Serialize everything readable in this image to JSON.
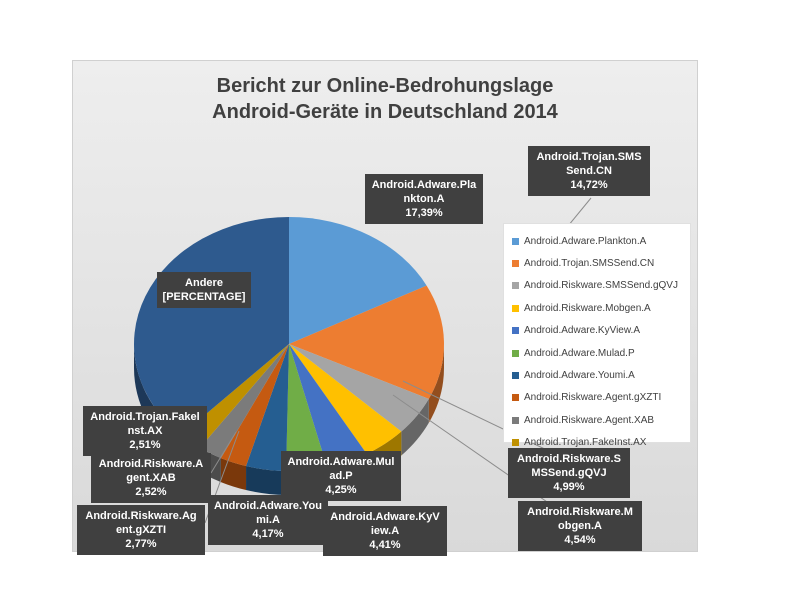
{
  "chart_data": {
    "type": "pie",
    "title_line1": "Bericht zur Online-Bedrohungslage",
    "title_line2": "Android-Geräte in Deutschland 2014",
    "slices": [
      {
        "name": "Android.Adware.Plankton.A",
        "label_lines": [
          "Android.Adware.Pla",
          "nkton.A"
        ],
        "value_label": "17,39%",
        "value": 17.39,
        "color": "#5b9bd5"
      },
      {
        "name": "Android.Trojan.SMSSend.CN",
        "label_lines": [
          "Android.Trojan.SMS",
          "Send.CN"
        ],
        "value_label": "14,72%",
        "value": 14.72,
        "color": "#ed7d31"
      },
      {
        "name": "Android.Riskware.SMSSend.gQVJ",
        "label_lines": [
          "Android.Riskware.S",
          "MSSend.gQVJ"
        ],
        "value_label": "4,99%",
        "value": 4.99,
        "color": "#a5a5a5"
      },
      {
        "name": "Android.Riskware.Mobgen.A",
        "label_lines": [
          "Android.Riskware.M",
          "obgen.A"
        ],
        "value_label": "4,54%",
        "value": 4.54,
        "color": "#ffc000"
      },
      {
        "name": "Android.Adware.KyView.A",
        "label_lines": [
          "Android.Adware.KyV",
          "iew.A"
        ],
        "value_label": "4,41%",
        "value": 4.41,
        "color": "#4472c4"
      },
      {
        "name": "Android.Adware.Mulad.P",
        "label_lines": [
          "Android.Adware.Mul",
          "ad.P"
        ],
        "value_label": "4,25%",
        "value": 4.25,
        "color": "#70ad47"
      },
      {
        "name": "Android.Adware.Youmi.A",
        "label_lines": [
          "Android.Adware.You",
          "mi.A"
        ],
        "value_label": "4,17%",
        "value": 4.17,
        "color": "#255e91"
      },
      {
        "name": "Android.Riskware.Agent.gXZTI",
        "label_lines": [
          "Android.Riskware.Ag",
          "ent.gXZTI"
        ],
        "value_label": "2,77%",
        "value": 2.77,
        "color": "#c55a11"
      },
      {
        "name": "Android.Riskware.Agent.XAB",
        "label_lines": [
          "Android.Riskware.A",
          "gent.XAB"
        ],
        "value_label": "2,52%",
        "value": 2.52,
        "color": "#7b7b7b"
      },
      {
        "name": "Android.Trojan.FakeInst.AX",
        "label_lines": [
          "Android.Trojan.Fakel",
          "nst.AX"
        ],
        "value_label": "2,51%",
        "value": 2.51,
        "color": "#bf9000"
      },
      {
        "name": "Andere",
        "label_lines": [
          "Andere",
          "[PERCENTAGE]"
        ],
        "value_label": "",
        "value": 37.73,
        "color": "#2e5a8e"
      }
    ],
    "legend": [
      "Android.Adware.Plankton.A",
      "Android.Trojan.SMSSend.CN",
      "Android.Riskware.SMSSend.gQVJ",
      "Android.Riskware.Mobgen.A",
      "Android.Adware.KyView.A",
      "Android.Adware.Mulad.P",
      "Android.Adware.Youmi.A",
      "Android.Riskware.Agent.gXZTI",
      "Android.Riskware.Agent.XAB",
      "Android.Trojan.FakeInst.AX"
    ],
    "legend_placement": "right",
    "style": "3d-pie"
  }
}
